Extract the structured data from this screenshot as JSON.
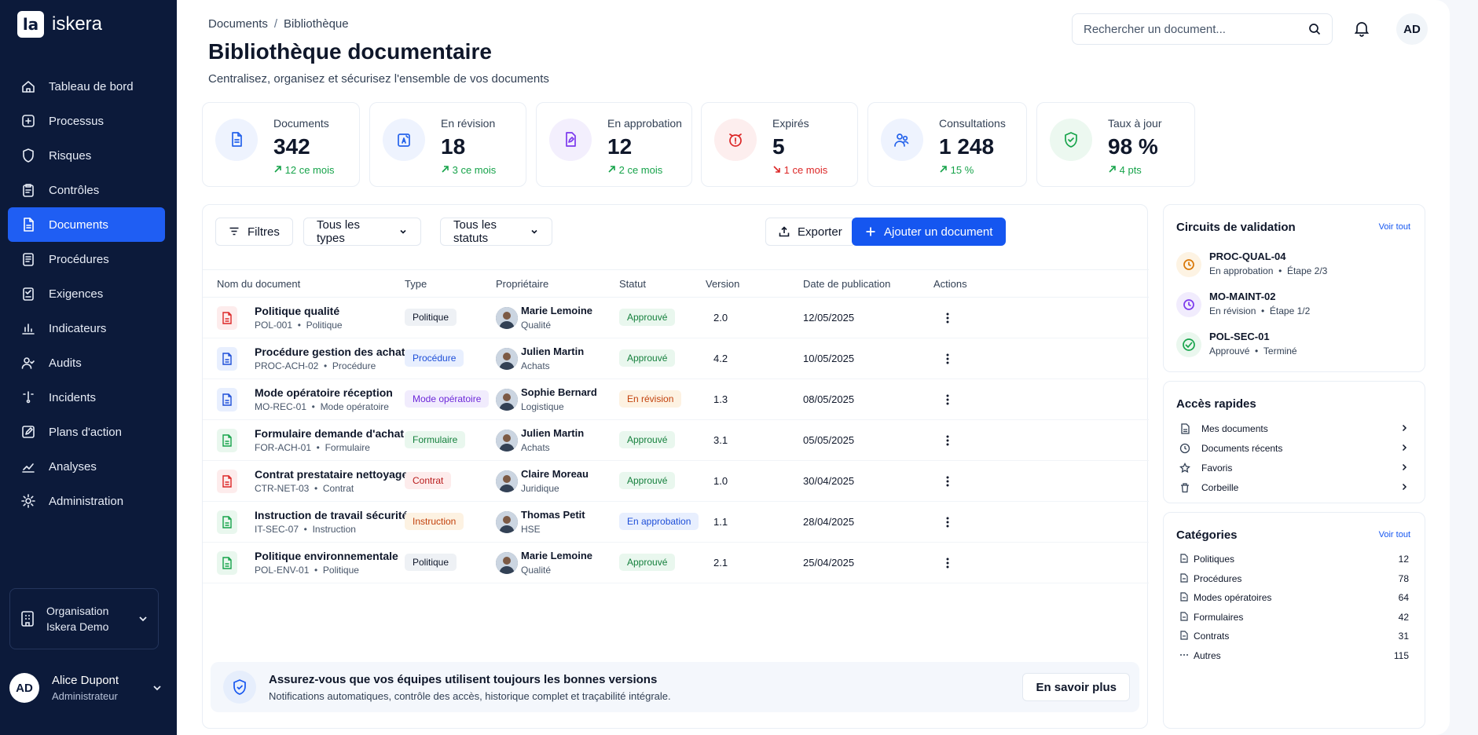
{
  "brand": {
    "logo": "la",
    "name": "iskera"
  },
  "nav": [
    {
      "label": "Tableau de bord",
      "icon": "home-icon"
    },
    {
      "label": "Processus",
      "icon": "process-icon"
    },
    {
      "label": "Risques",
      "icon": "shield-icon"
    },
    {
      "label": "Contrôles",
      "icon": "clipboard-icon"
    },
    {
      "label": "Documents",
      "icon": "document-icon",
      "active": true
    },
    {
      "label": "Procédures",
      "icon": "procedure-icon"
    },
    {
      "label": "Exigences",
      "icon": "requirement-icon"
    },
    {
      "label": "Indicateurs",
      "icon": "bar-chart-icon"
    },
    {
      "label": "Audits",
      "icon": "user-check-icon"
    },
    {
      "label": "Incidents",
      "icon": "alert-icon"
    },
    {
      "label": "Plans d'action",
      "icon": "edit-icon"
    },
    {
      "label": "Analyses",
      "icon": "trend-icon"
    },
    {
      "label": "Administration",
      "icon": "gear-icon"
    }
  ],
  "org": {
    "line1": "Organisation",
    "line2": "Iskera Demo"
  },
  "user": {
    "initials": "AD",
    "name": "Alice Dupont",
    "role": "Administrateur"
  },
  "header": {
    "breadcrumb": [
      "Documents",
      "Bibliothèque"
    ],
    "title": "Bibliothèque documentaire",
    "subtitle": "Centralisez, organisez et sécurisez l'ensemble de vos documents",
    "search_placeholder": "Rechercher un document...",
    "avatar": "AD"
  },
  "stats": [
    {
      "label": "Documents",
      "value": "342",
      "trend": "12 ce mois",
      "dir": "up",
      "color": "#2563eb",
      "bg": "#eef3fe"
    },
    {
      "label": "En révision",
      "value": "18",
      "trend": "3 ce mois",
      "dir": "up",
      "color": "#2563eb",
      "bg": "#eef3fe"
    },
    {
      "label": "En approbation",
      "value": "12",
      "trend": "2 ce mois",
      "dir": "up",
      "color": "#7c3aed",
      "bg": "#f3effd"
    },
    {
      "label": "Expirés",
      "value": "5",
      "trend": "1 ce mois",
      "dir": "down",
      "color": "#dc2626",
      "bg": "#fdeeee"
    },
    {
      "label": "Consultations",
      "value": "1 248",
      "trend": "15 %",
      "dir": "up",
      "color": "#2563eb",
      "bg": "#eef3fe"
    },
    {
      "label": "Taux à jour",
      "value": "98 %",
      "trend": "4 pts",
      "dir": "up",
      "color": "#16a34a",
      "bg": "#ecf8f0"
    }
  ],
  "toolbar": {
    "filters": "Filtres",
    "types": "Tous les types",
    "statuses": "Tous les statuts",
    "export": "Exporter",
    "add": "Ajouter un document"
  },
  "columns": [
    "Nom du document",
    "Type",
    "Propriétaire",
    "Statut",
    "Version",
    "Date de publication",
    "Actions"
  ],
  "documents": [
    {
      "name": "Politique qualité",
      "code": "POL-001",
      "category": "Politique",
      "file": "pdf",
      "type": "Politique",
      "type_style": "gray",
      "owner": "Marie Lemoine",
      "dept": "Qualité",
      "status": "Approuvé",
      "status_style": "green",
      "version": "2.0",
      "date": "12/05/2025"
    },
    {
      "name": "Procédure gestion des achats",
      "code": "PROC-ACH-02",
      "category": "Procédure",
      "file": "word",
      "type": "Procédure",
      "type_style": "blue",
      "owner": "Julien Martin",
      "dept": "Achats",
      "status": "Approuvé",
      "status_style": "green",
      "version": "4.2",
      "date": "10/05/2025"
    },
    {
      "name": "Mode opératoire réception",
      "code": "MO-REC-01",
      "category": "Mode opératoire",
      "file": "word",
      "type": "Mode opératoire",
      "type_style": "purple",
      "owner": "Sophie Bernard",
      "dept": "Logistique",
      "status": "En révision",
      "status_style": "orange",
      "version": "1.3",
      "date": "08/05/2025"
    },
    {
      "name": "Formulaire demande d'achat",
      "code": "FOR-ACH-01",
      "category": "Formulaire",
      "file": "excel",
      "type": "Formulaire",
      "type_style": "green",
      "owner": "Julien Martin",
      "dept": "Achats",
      "status": "Approuvé",
      "status_style": "green",
      "version": "3.1",
      "date": "05/05/2025"
    },
    {
      "name": "Contrat prestataire nettoyage",
      "code": "CTR-NET-03",
      "category": "Contrat",
      "file": "pdf",
      "type": "Contrat",
      "type_style": "red",
      "owner": "Claire Moreau",
      "dept": "Juridique",
      "status": "Approuvé",
      "status_style": "green",
      "version": "1.0",
      "date": "30/04/2025"
    },
    {
      "name": "Instruction de travail sécurité",
      "code": "IT-SEC-07",
      "category": "Instruction",
      "file": "excel",
      "type": "Instruction",
      "type_style": "orange",
      "owner": "Thomas Petit",
      "dept": "HSE",
      "status": "En approbation",
      "status_style": "blue",
      "version": "1.1",
      "date": "28/04/2025"
    },
    {
      "name": "Politique environnementale",
      "code": "POL-ENV-01",
      "category": "Politique",
      "file": "excel",
      "type": "Politique",
      "type_style": "gray",
      "owner": "Marie Lemoine",
      "dept": "Qualité",
      "status": "Approuvé",
      "status_style": "green",
      "version": "2.1",
      "date": "25/04/2025"
    }
  ],
  "banner": {
    "title": "Assurez-vous que vos équipes utilisent toujours les bonnes versions",
    "subtitle": "Notifications automatiques, contrôle des accès, historique complet et traçabilité intégrale.",
    "button": "En savoir plus"
  },
  "circuits": {
    "title": "Circuits de validation",
    "link": "Voir tout",
    "items": [
      {
        "code": "PROC-QUAL-04",
        "status": "En approbation",
        "step": "Étape 2/3",
        "color": "#d97706",
        "bg": "#fdf3e3"
      },
      {
        "code": "MO-MAINT-02",
        "status": "En révision",
        "step": "Étape 1/2",
        "color": "#7c3aed",
        "bg": "#f1ecfd"
      },
      {
        "code": "POL-SEC-01",
        "status": "Approuvé",
        "step": "Terminé",
        "color": "#16a34a",
        "bg": "#eaf7ee"
      }
    ]
  },
  "quick": {
    "title": "Accès rapides",
    "items": [
      {
        "label": "Mes documents",
        "icon": "document-icon"
      },
      {
        "label": "Documents récents",
        "icon": "clock-icon"
      },
      {
        "label": "Favoris",
        "icon": "star-icon"
      },
      {
        "label": "Corbeille",
        "icon": "trash-icon"
      }
    ]
  },
  "categories": {
    "title": "Catégories",
    "link": "Voir tout",
    "items": [
      {
        "label": "Politiques",
        "count": "12"
      },
      {
        "label": "Procédures",
        "count": "78"
      },
      {
        "label": "Modes opératoires",
        "count": "64"
      },
      {
        "label": "Formulaires",
        "count": "42"
      },
      {
        "label": "Contrats",
        "count": "31"
      },
      {
        "label": "Autres",
        "count": "115"
      }
    ]
  }
}
